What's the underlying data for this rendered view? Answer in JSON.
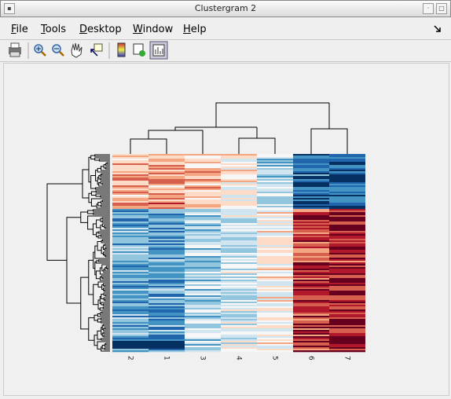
{
  "window": {
    "title": "Clustergram 2"
  },
  "menu": [
    "File",
    "Tools",
    "Desktop",
    "Window",
    "Help"
  ],
  "heatmap": {
    "column_labels": [
      "2",
      "1",
      "3",
      "4",
      "5",
      "6",
      "7"
    ]
  }
}
